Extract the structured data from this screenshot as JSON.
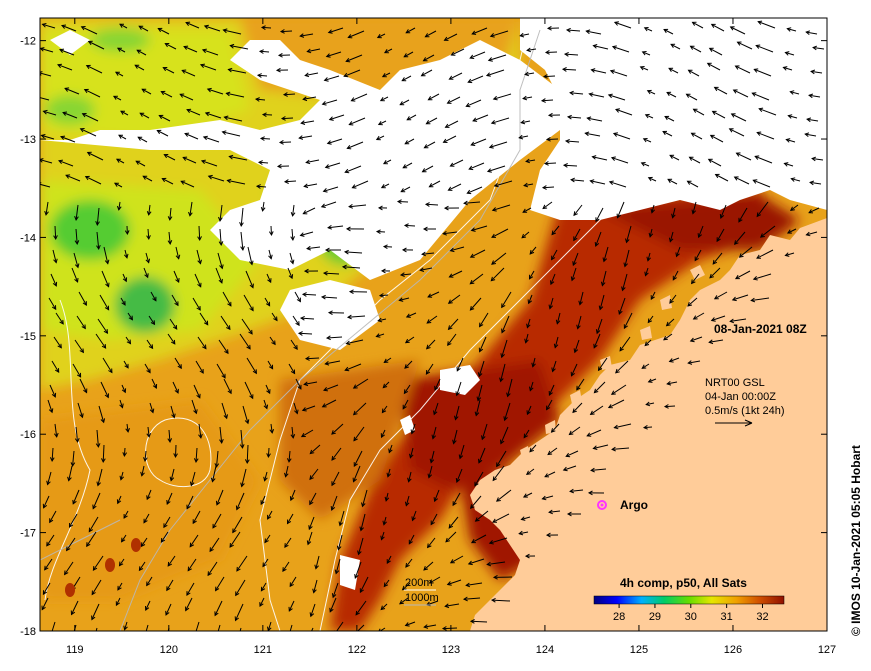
{
  "map": {
    "lon_ticks": [
      "119",
      "120",
      "121",
      "122",
      "123",
      "124",
      "125",
      "126",
      "127"
    ],
    "lat_ticks": [
      "-12",
      "-13",
      "-14",
      "-15",
      "-16",
      "-17",
      "-18"
    ],
    "lon_range": [
      118.63,
      127.0
    ],
    "lat_range": [
      -11.77,
      -18.0
    ]
  },
  "annotations": {
    "date_label": "08-Jan-2021 08Z",
    "current_line1": "NRT00 GSL",
    "current_line2": "04-Jan 00:00Z",
    "current_line3": "0.5m/s (1kt 24h)",
    "argo_label": "Argo",
    "contour_200": "200m",
    "contour_1000": "1000m",
    "colorbar_title": "4h comp, p50, All Sats",
    "colorbar_ticks": [
      "28",
      "29",
      "30",
      "31",
      "32"
    ],
    "credit": "© IMOS 10-Jan-2021 05:05 Hobart"
  },
  "colors": {
    "land": "#FFCC99",
    "argo": "#FF33FF",
    "sst_warm": "#A01A00",
    "sst_mid": "#E07800",
    "sst_cool": "#D8E600",
    "sst_cold": "#33CC33"
  }
}
